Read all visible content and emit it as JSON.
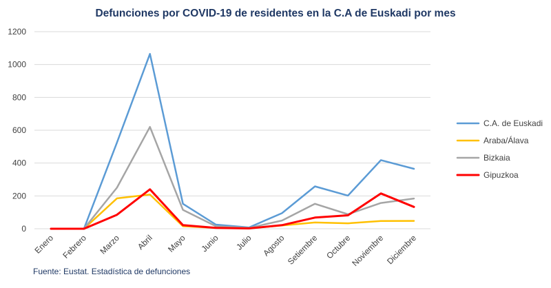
{
  "chart_data": {
    "type": "line",
    "title": "Defunciones por COVID-19 de residentes en la C.A de Euskadi por mes",
    "source": "Fuente: Eustat. Estadística de defunciones",
    "xlabel": "",
    "ylabel": "",
    "ylim": [
      0,
      1200
    ],
    "yticks": [
      "0",
      "200",
      "400",
      "600",
      "800",
      "1000",
      "1200"
    ],
    "grid": true,
    "legend_position": "right",
    "categories": [
      "Enero",
      "Febrero",
      "Marzo",
      "Abril",
      "Mayo",
      "Junio",
      "Julio",
      "Agosto",
      "Setiembre",
      "Octubre",
      "Noviembre",
      "Diciembre"
    ],
    "series": [
      {
        "name": "C.A. de Euskadi",
        "color": "#5b9bd5",
        "values": [
          0,
          0,
          525,
          1065,
          152,
          25,
          8,
          95,
          258,
          202,
          418,
          365
        ]
      },
      {
        "name": "Araba/Álava",
        "color": "#ffc000",
        "values": [
          0,
          0,
          185,
          208,
          15,
          5,
          2,
          20,
          38,
          33,
          47,
          48
        ]
      },
      {
        "name": "Bizkaia",
        "color": "#a5a5a5",
        "values": [
          0,
          0,
          250,
          620,
          115,
          15,
          5,
          50,
          152,
          88,
          157,
          184
        ]
      },
      {
        "name": "Gipuzkoa",
        "color": "#ff0000",
        "values": [
          0,
          0,
          85,
          240,
          22,
          5,
          2,
          22,
          68,
          82,
          215,
          133
        ]
      }
    ]
  }
}
